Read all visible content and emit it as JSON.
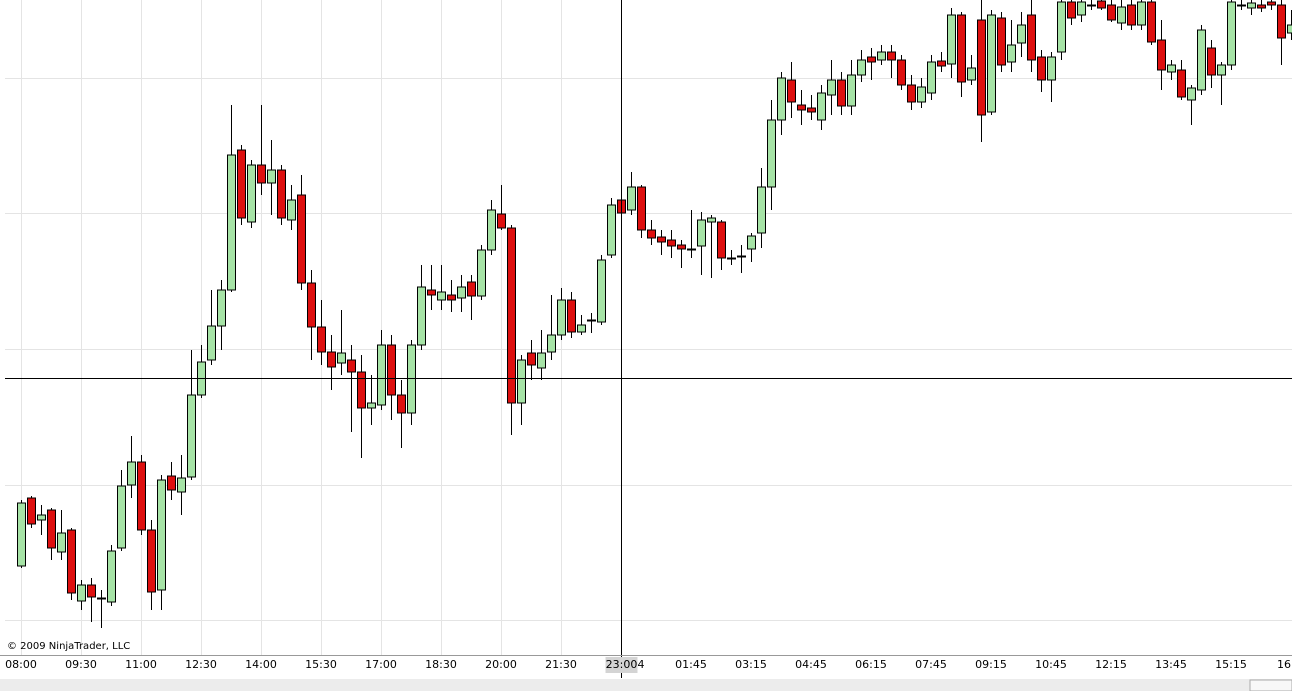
{
  "chart_data": {
    "type": "candlestick",
    "copyright": "© 2009 NinjaTrader, LLC",
    "categories": [
      "08:00",
      null,
      null,
      null,
      null,
      null,
      "09:30",
      null,
      null,
      null,
      null,
      null,
      "11:00",
      null,
      null,
      null,
      null,
      null,
      "12:30",
      null,
      null,
      null,
      null,
      null,
      "14:00",
      null,
      null,
      null,
      null,
      null,
      "15:30",
      null,
      null,
      null,
      null,
      null,
      "17:00",
      null,
      null,
      null,
      null,
      null,
      "18:30",
      null,
      null,
      null,
      null,
      null,
      "20:00",
      null,
      null,
      null,
      null,
      null,
      "21:30",
      null,
      null,
      null,
      null,
      null,
      "23:00",
      null,
      "4",
      null,
      null,
      null,
      null,
      "01:45",
      null,
      null,
      null,
      null,
      null,
      "03:15",
      null,
      null,
      null,
      null,
      null,
      "04:45",
      null,
      null,
      null,
      null,
      null,
      "06:15",
      null,
      null,
      null,
      null,
      null,
      "07:45",
      null,
      null,
      null,
      null,
      null,
      "09:15",
      null,
      null,
      null,
      null,
      null,
      "10:45",
      null,
      null,
      null,
      null,
      null,
      "12:15",
      null,
      null,
      null,
      null,
      null,
      "13:45",
      null,
      null,
      null,
      null,
      null,
      "15:15",
      null,
      null,
      null,
      null,
      null,
      "16:"
    ],
    "open": [
      434,
      502,
      480,
      490,
      448,
      470,
      399,
      415,
      402,
      398,
      452,
      515,
      538,
      470,
      410,
      524,
      508,
      523,
      605,
      640,
      674,
      710,
      850,
      778,
      835,
      817,
      830,
      780,
      805,
      717,
      673,
      648,
      637,
      640,
      628,
      592,
      595,
      655,
      605,
      587,
      655,
      710,
      700,
      705,
      702,
      718,
      704,
      750,
      786,
      772,
      597,
      647,
      632,
      648,
      665,
      700,
      668,
      680,
      678,
      745,
      800,
      790,
      813,
      770,
      763,
      760,
      755,
      751,
      754,
      778,
      778,
      742,
      744,
      751,
      767,
      813,
      880,
      920,
      895,
      892,
      880,
      905,
      920,
      894,
      925,
      943,
      940,
      948,
      940,
      915,
      898,
      907,
      939,
      936,
      985,
      920,
      980,
      888,
      982,
      938,
      957,
      985,
      943,
      920,
      948,
      998,
      985,
      995,
      999,
      995,
      977,
      995,
      975,
      998,
      960,
      928,
      930,
      900,
      910,
      952,
      925,
      935,
      995,
      992,
      995,
      998,
      995,
      967
    ],
    "high": [
      500,
      504,
      495,
      492,
      490,
      472,
      420,
      422,
      410,
      455,
      530,
      564,
      545,
      480,
      525,
      538,
      545,
      650,
      655,
      710,
      720,
      895,
      855,
      840,
      895,
      860,
      835,
      815,
      825,
      730,
      700,
      665,
      690,
      655,
      645,
      625,
      670,
      665,
      620,
      660,
      735,
      735,
      735,
      720,
      725,
      725,
      755,
      800,
      815,
      775,
      645,
      660,
      670,
      705,
      712,
      708,
      685,
      687,
      745,
      802,
      805,
      828,
      815,
      780,
      770,
      770,
      760,
      790,
      788,
      785,
      780,
      750,
      755,
      767,
      832,
      900,
      928,
      938,
      910,
      905,
      915,
      940,
      928,
      940,
      950,
      952,
      955,
      955,
      945,
      925,
      922,
      945,
      948,
      992,
      988,
      945,
      1000,
      990,
      988,
      980,
      988,
      1000,
      950,
      948,
      1000,
      1000,
      1000,
      1000,
      1000,
      1000,
      1000,
      1000,
      1000,
      1000,
      980,
      940,
      940,
      915,
      975,
      960,
      938,
      1000,
      1000,
      1000,
      1000,
      1000,
      1000,
      990
    ],
    "low": [
      432,
      472,
      465,
      440,
      440,
      400,
      390,
      378,
      372,
      394,
      449,
      502,
      465,
      390,
      390,
      500,
      485,
      520,
      602,
      635,
      650,
      708,
      775,
      772,
      805,
      785,
      775,
      770,
      710,
      640,
      635,
      610,
      625,
      568,
      542,
      575,
      590,
      580,
      552,
      575,
      650,
      690,
      690,
      688,
      688,
      680,
      700,
      745,
      770,
      565,
      575,
      620,
      620,
      640,
      660,
      662,
      665,
      667,
      675,
      742,
      782,
      785,
      762,
      755,
      745,
      742,
      732,
      742,
      725,
      722,
      730,
      735,
      727,
      738,
      752,
      790,
      865,
      882,
      875,
      880,
      870,
      885,
      885,
      885,
      918,
      920,
      935,
      922,
      910,
      890,
      892,
      900,
      928,
      922,
      903,
      915,
      858,
      885,
      928,
      928,
      943,
      928,
      908,
      898,
      940,
      975,
      978,
      990,
      990,
      978,
      970,
      970,
      970,
      955,
      910,
      920,
      900,
      875,
      905,
      912,
      895,
      930,
      990,
      985,
      988,
      990,
      935,
      960
    ],
    "close": [
      497,
      476,
      485,
      452,
      467,
      407,
      415,
      403,
      402,
      449,
      514,
      538,
      470,
      408,
      520,
      510,
      522,
      605,
      638,
      674,
      710,
      845,
      782,
      835,
      817,
      830,
      782,
      800,
      717,
      673,
      648,
      633,
      647,
      628,
      592,
      597,
      655,
      605,
      587,
      655,
      713,
      705,
      708,
      700,
      713,
      704,
      750,
      790,
      772,
      597,
      640,
      635,
      647,
      665,
      700,
      668,
      675,
      680,
      740,
      795,
      787,
      813,
      770,
      762,
      758,
      754,
      751,
      751,
      780,
      782,
      742,
      742,
      744,
      764,
      813,
      880,
      922,
      898,
      890,
      888,
      907,
      920,
      894,
      925,
      940,
      938,
      948,
      940,
      915,
      898,
      913,
      938,
      934,
      985,
      918,
      932,
      885,
      985,
      935,
      955,
      975,
      940,
      920,
      943,
      998,
      982,
      998,
      995,
      992,
      980,
      993,
      975,
      998,
      958,
      930,
      935,
      903,
      912,
      970,
      925,
      935,
      998,
      995,
      997,
      992,
      995,
      962,
      975
    ],
    "up_color": "#a6e3a6",
    "down_color": "#dd0f0f",
    "ylim": [
      345,
      1000
    ],
    "grid_y": [
      922,
      787,
      651,
      515,
      380
    ],
    "grid": true,
    "crosshair": {
      "y": 622,
      "x": "23:00"
    }
  }
}
